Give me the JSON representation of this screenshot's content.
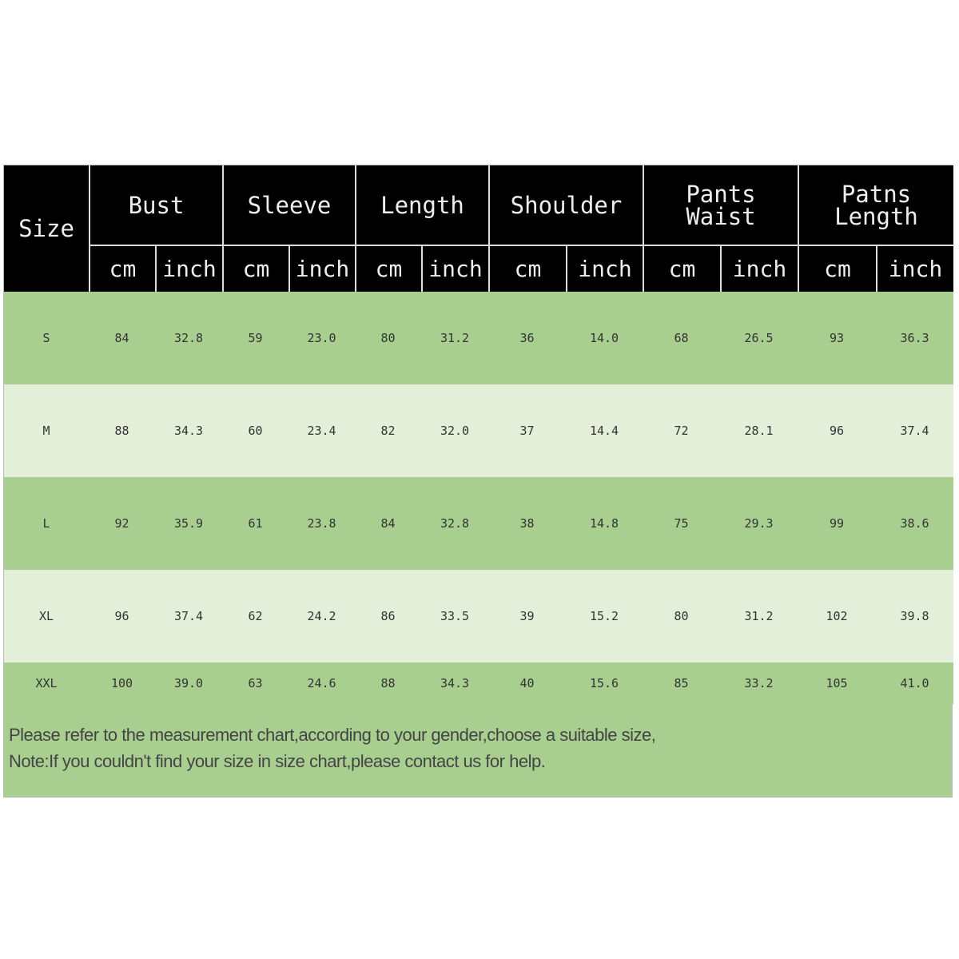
{
  "headers": {
    "size": "Size",
    "groups": [
      "Bust",
      "Sleeve",
      "Length",
      "Shoulder",
      "Pants Waist",
      "Patns Length"
    ],
    "units": [
      "cm",
      "inch"
    ]
  },
  "rows": [
    [
      "S",
      "84",
      "32.8",
      "59",
      "23.0",
      "80",
      "31.2",
      "36",
      "14.0",
      "68",
      "26.5",
      "93",
      "36.3"
    ],
    [
      "M",
      "88",
      "34.3",
      "60",
      "23.4",
      "82",
      "32.0",
      "37",
      "14.4",
      "72",
      "28.1",
      "96",
      "37.4"
    ],
    [
      "L",
      "92",
      "35.9",
      "61",
      "23.8",
      "84",
      "32.8",
      "38",
      "14.8",
      "75",
      "29.3",
      "99",
      "38.6"
    ],
    [
      "XL",
      "96",
      "37.4",
      "62",
      "24.2",
      "86",
      "33.5",
      "39",
      "15.2",
      "80",
      "31.2",
      "102",
      "39.8"
    ],
    [
      "XXL",
      "100",
      "39.0",
      "63",
      "24.6",
      "88",
      "34.3",
      "40",
      "15.6",
      "85",
      "33.2",
      "105",
      "41.0"
    ]
  ],
  "notes": [
    "Please refer to the measurement chart,according to your gender,choose a suitable size,",
    "Note:If you couldn't find your size in size chart,please contact us for help."
  ],
  "colors": {
    "header_bg": "#000000",
    "row_dark": "#a8cf90",
    "row_light": "#e4efda"
  }
}
